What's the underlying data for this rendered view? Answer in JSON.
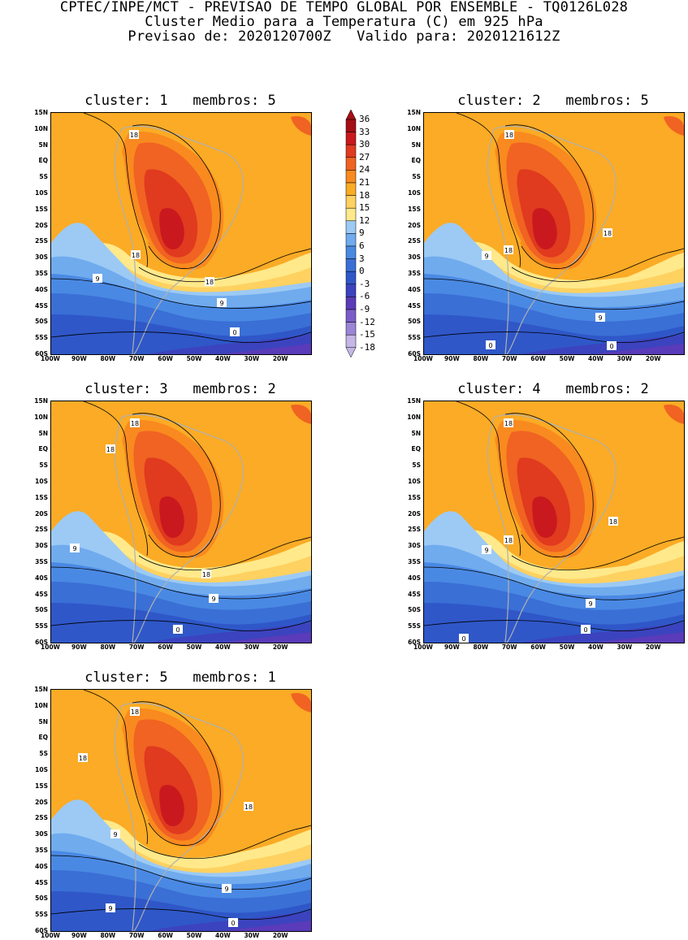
{
  "header": {
    "line1": "CPTEC/INPE/MCT - PREVISAO DE TEMPO GLOBAL POR ENSEMBLE - TQ0126L028",
    "line2": "Cluster Medio para a Temperatura (C) em 925 hPa",
    "line3": "Previsao de: 2020120700Z   Valido para: 2020121612Z"
  },
  "axes": {
    "lat_labels": [
      "15N",
      "10N",
      "5N",
      "EQ",
      "5S",
      "10S",
      "15S",
      "20S",
      "25S",
      "30S",
      "35S",
      "40S",
      "45S",
      "50S",
      "55S",
      "60S"
    ],
    "lon_labels": [
      "100W",
      "90W",
      "80W",
      "70W",
      "60W",
      "50W",
      "40W",
      "30W",
      "20W"
    ]
  },
  "colorbar": {
    "labels": [
      "36",
      "33",
      "30",
      "27",
      "24",
      "21",
      "18",
      "15",
      "12",
      "9",
      "6",
      "3",
      "0",
      "-3",
      "-6",
      "-9",
      "-12",
      "-15",
      "-18"
    ],
    "colors": [
      "#a50f15",
      "#c9191e",
      "#e03a1f",
      "#f06322",
      "#f98a1f",
      "#fbab25",
      "#fed160",
      "#ffe98a",
      "#9ccaf5",
      "#70abee",
      "#4a89e3",
      "#3a6fd6",
      "#2f57c8",
      "#3c43be",
      "#5a3bb9",
      "#7b5cc8",
      "#9b85d6",
      "#c4b7e6"
    ]
  },
  "panels": [
    {
      "title": "cluster: 1   membros: 5",
      "contour_labels": [
        "18",
        "18",
        "9",
        "18",
        "9",
        "0"
      ]
    },
    {
      "title": "cluster: 2   membros: 5",
      "contour_labels": [
        "18",
        "18",
        "9",
        "18",
        "9",
        "0",
        "0"
      ]
    },
    {
      "title": "cluster: 3   membros: 2",
      "contour_labels": [
        "18",
        "18",
        "9",
        "18",
        "9",
        "0"
      ]
    },
    {
      "title": "cluster: 4   membros: 2",
      "contour_labels": [
        "18",
        "18",
        "9",
        "18",
        "9",
        "0",
        "0"
      ]
    },
    {
      "title": "cluster: 5   membros: 1",
      "contour_labels": [
        "18",
        "18",
        "9",
        "18",
        "9",
        "9",
        "0"
      ]
    }
  ]
}
